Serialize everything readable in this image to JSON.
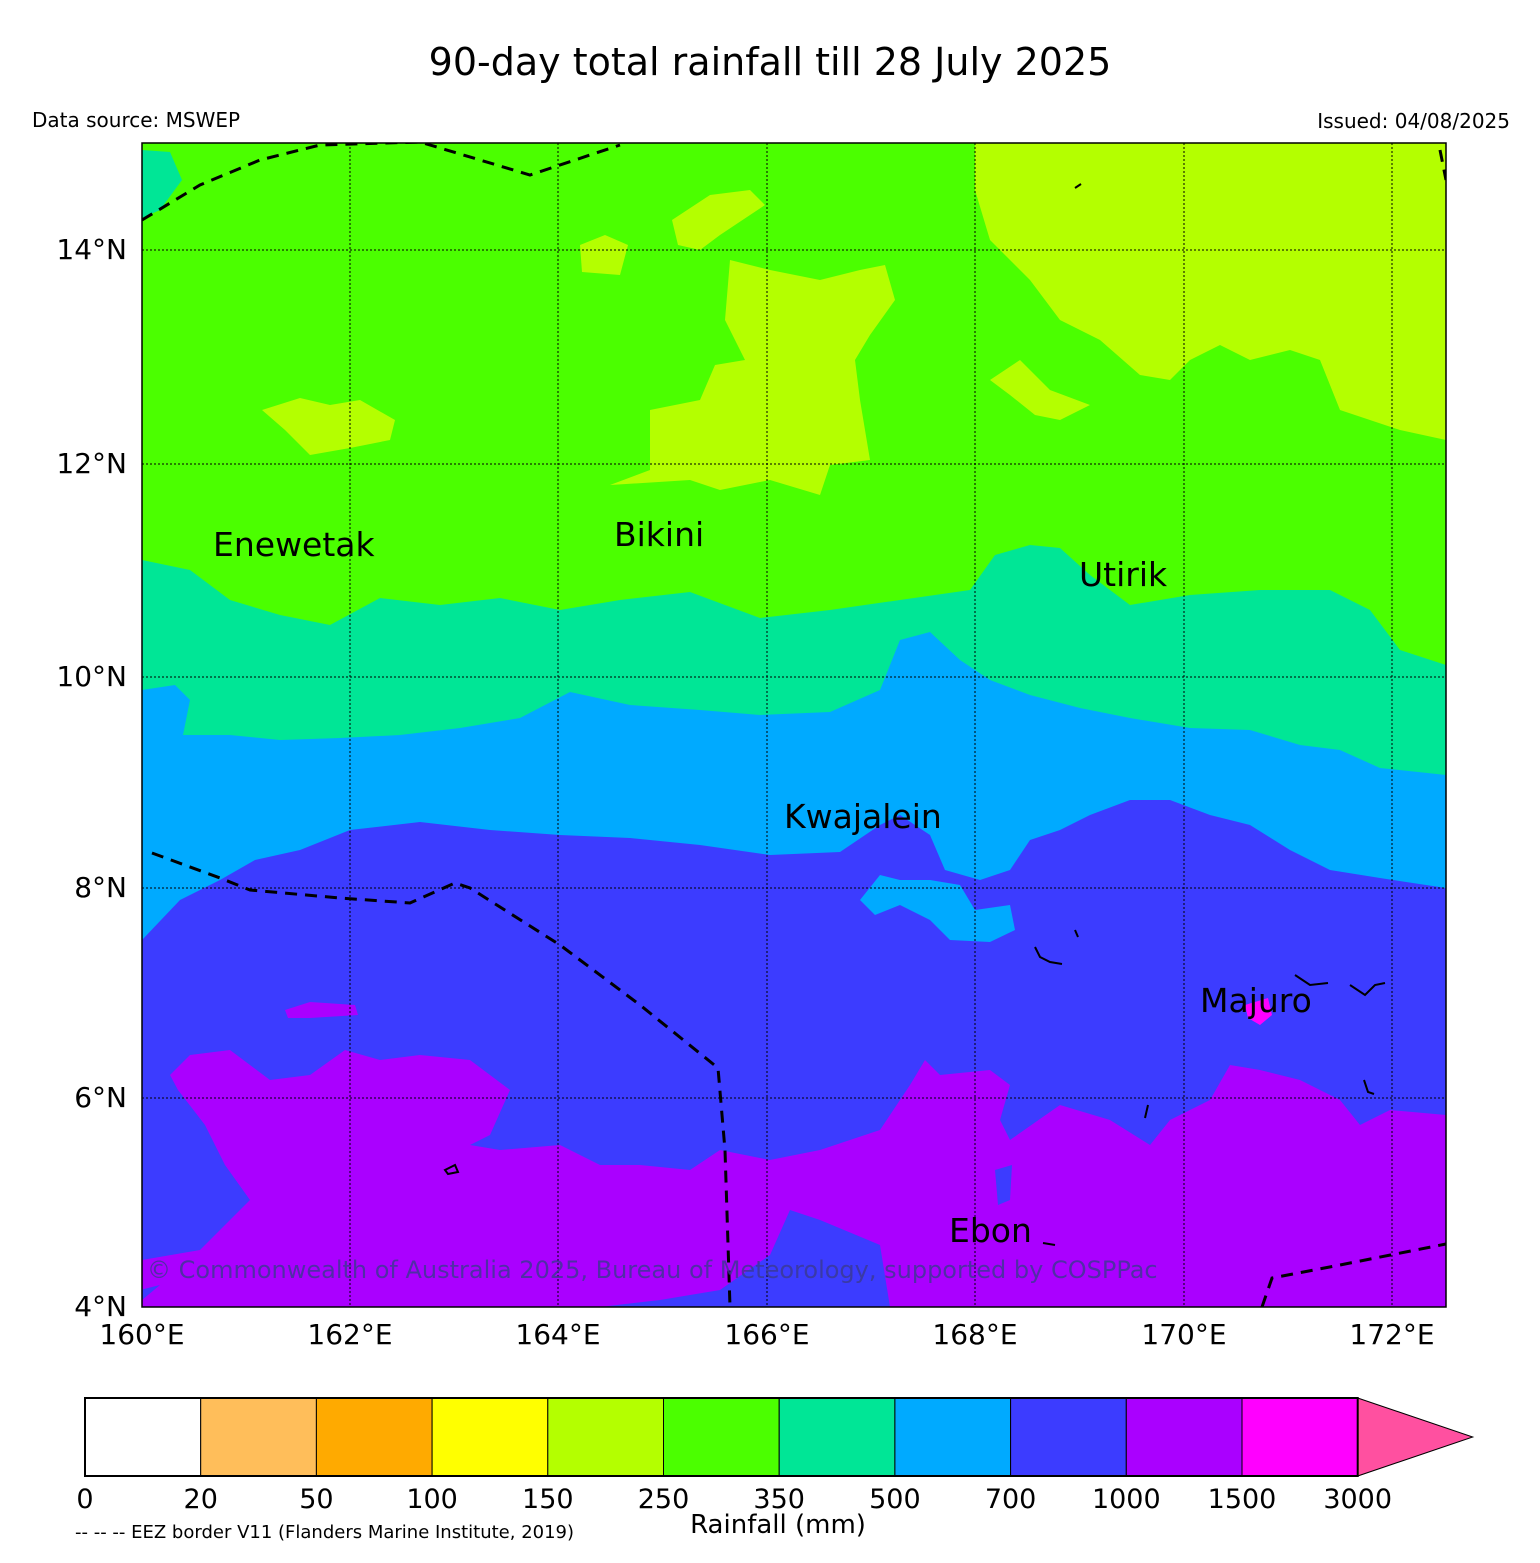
{
  "title": "90-day total rainfall till 28 July 2025",
  "data_source": "Data source: MSWEP",
  "issued": "Issued: 04/08/2025",
  "copyright": "© Commonwealth of Australia 2025, Bureau of Meteorology, supported by COSPPac",
  "lat_labels": [
    "14°N",
    "12°N",
    "10°N",
    "8°N",
    "6°N",
    "4°N"
  ],
  "lon_labels": [
    "160°E",
    "162°E",
    "164°E",
    "166°E",
    "168°E",
    "170°E",
    "172°E"
  ],
  "places": [
    "Enewetak",
    "Bikini",
    "Utirik",
    "Kwajalein",
    "Majuro",
    "Ebon"
  ],
  "colorbar": {
    "label": "Rainfall (mm)",
    "ticks": [
      "0",
      "20",
      "50",
      "100",
      "150",
      "250",
      "350",
      "500",
      "700",
      "1000",
      "1500",
      "3000"
    ],
    "colors": [
      "#ffffff",
      "#ffbe5a",
      "#ffaa00",
      "#ffff00",
      "#b4ff00",
      "#4bff00",
      "#00e696",
      "#00aaff",
      "#3c3cff",
      "#aa00ff",
      "#ff00ff",
      "#ff50a0"
    ]
  },
  "eez_note": "-- -- -- EEZ border V11 (Flanders Marine Institute, 2019)"
}
